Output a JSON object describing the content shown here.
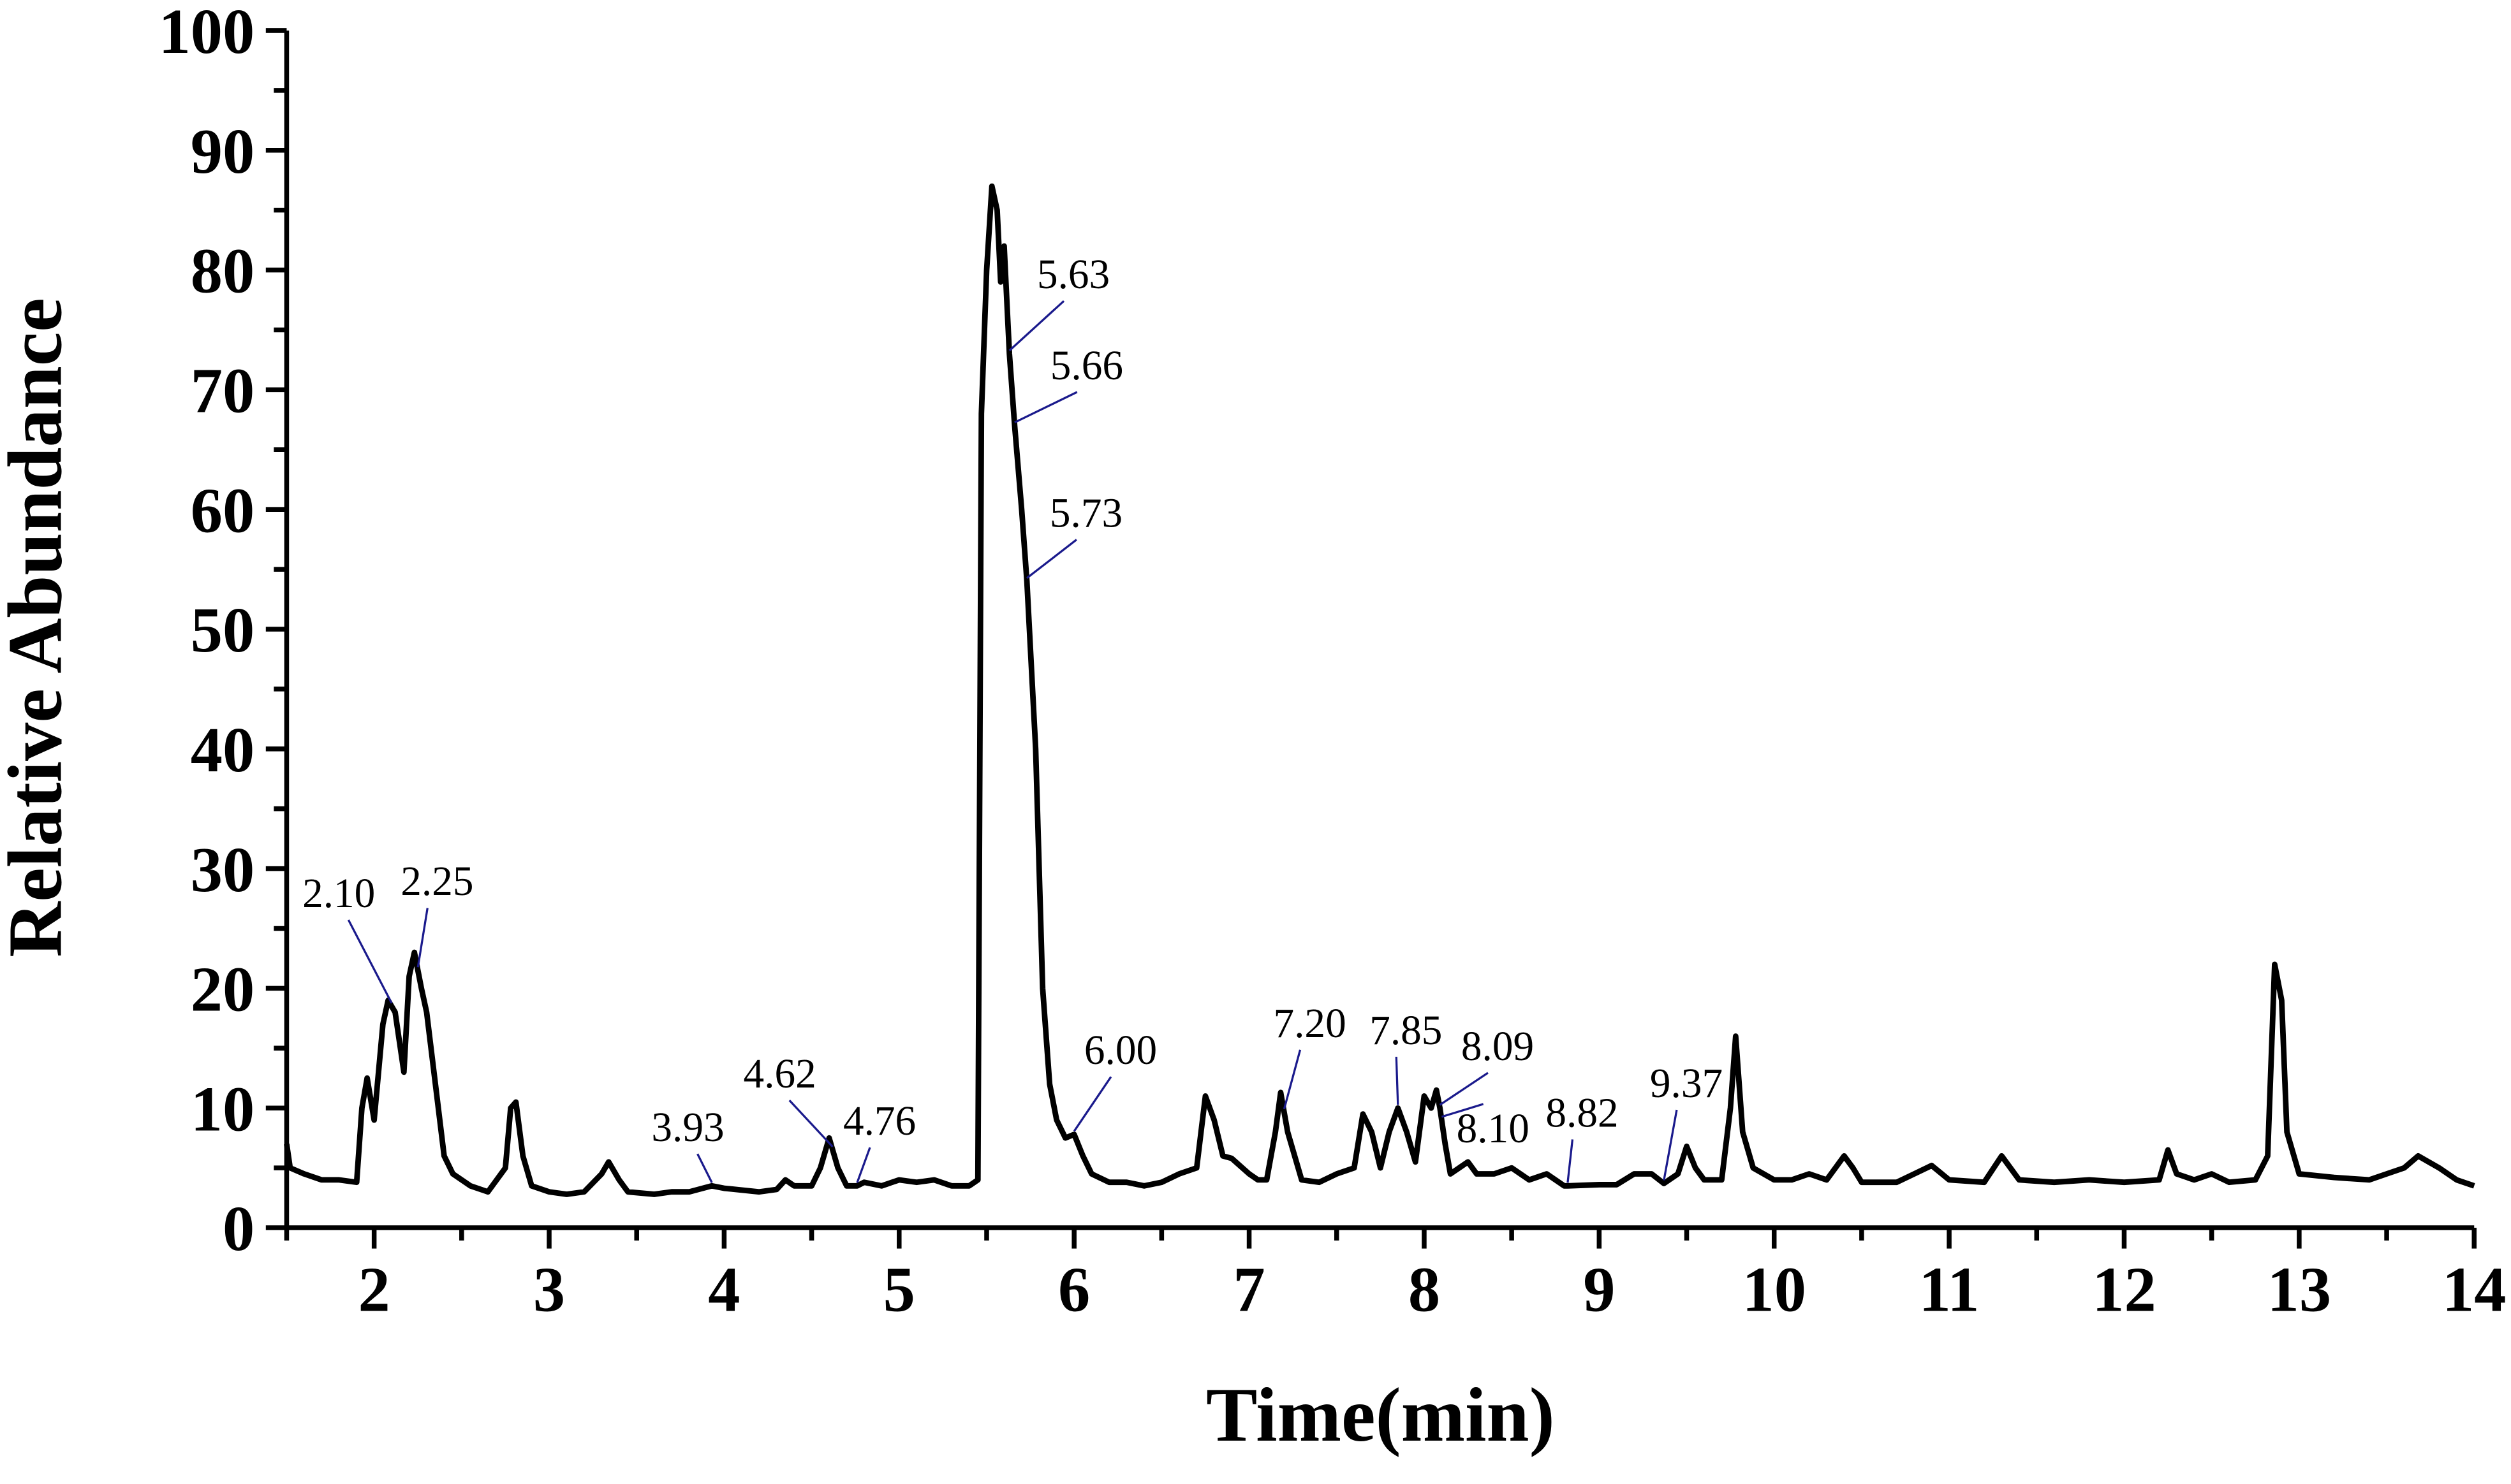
{
  "chart_data": {
    "type": "line",
    "x_label": "Time(min)",
    "y_label": "Relative Abundance",
    "color": "#000000",
    "annotation_color": "#1a1a8c",
    "xlim": [
      1.5,
      14
    ],
    "ylim": [
      0,
      100
    ],
    "xticks": [
      2,
      3,
      4,
      5,
      6,
      7,
      8,
      9,
      10,
      11,
      12,
      13,
      14
    ],
    "xminorticks": [
      1.5,
      2.5,
      3.5,
      4.5,
      5.5,
      6.5,
      7.5,
      8.5,
      9.5,
      10.5,
      11.5,
      12.5,
      13.5
    ],
    "yticks": [
      0,
      10,
      20,
      30,
      40,
      50,
      60,
      70,
      80,
      90,
      100
    ],
    "yminorticks": [
      5,
      15,
      25,
      35,
      45,
      55,
      65,
      75,
      85,
      95
    ],
    "x": [
      1.5,
      1.52,
      1.6,
      1.7,
      1.8,
      1.9,
      1.93,
      1.96,
      2.0,
      2.05,
      2.08,
      2.12,
      2.17,
      2.2,
      2.23,
      2.27,
      2.3,
      2.35,
      2.4,
      2.45,
      2.55,
      2.65,
      2.7,
      2.75,
      2.78,
      2.81,
      2.85,
      2.9,
      3.0,
      3.1,
      3.2,
      3.3,
      3.34,
      3.4,
      3.45,
      3.6,
      3.7,
      3.8,
      3.93,
      4.0,
      4.2,
      4.3,
      4.35,
      4.4,
      4.5,
      4.55,
      4.6,
      4.65,
      4.7,
      4.76,
      4.8,
      4.9,
      5.0,
      5.1,
      5.2,
      5.3,
      5.4,
      5.45,
      5.47,
      5.5,
      5.53,
      5.56,
      5.58,
      5.6,
      5.63,
      5.66,
      5.7,
      5.73,
      5.78,
      5.82,
      5.86,
      5.9,
      5.95,
      6.0,
      6.05,
      6.1,
      6.2,
      6.3,
      6.4,
      6.5,
      6.6,
      6.7,
      6.75,
      6.8,
      6.85,
      6.9,
      7.0,
      7.05,
      7.1,
      7.15,
      7.18,
      7.22,
      7.3,
      7.4,
      7.5,
      7.6,
      7.65,
      7.7,
      7.75,
      7.8,
      7.85,
      7.9,
      7.95,
      8.0,
      8.04,
      8.07,
      8.09,
      8.12,
      8.15,
      8.2,
      8.25,
      8.3,
      8.4,
      8.5,
      8.6,
      8.7,
      8.8,
      8.82,
      9.0,
      9.1,
      9.2,
      9.3,
      9.37,
      9.45,
      9.5,
      9.55,
      9.6,
      9.7,
      9.75,
      9.78,
      9.82,
      9.88,
      10.0,
      10.1,
      10.2,
      10.3,
      10.4,
      10.45,
      10.5,
      10.7,
      10.8,
      10.9,
      11.0,
      11.2,
      11.3,
      11.35,
      11.4,
      11.6,
      11.8,
      12.0,
      12.2,
      12.25,
      12.3,
      12.4,
      12.5,
      12.6,
      12.75,
      12.82,
      12.86,
      12.9,
      12.93,
      13.0,
      13.2,
      13.4,
      13.5,
      13.6,
      13.68,
      13.8,
      13.9,
      14.0
    ],
    "values": [
      7,
      5,
      4.5,
      4,
      4,
      3.8,
      10,
      12.5,
      9,
      17,
      19,
      18,
      13,
      21,
      23,
      20,
      18,
      12,
      6,
      4.5,
      3.5,
      3,
      4,
      5,
      10,
      10.5,
      6,
      3.5,
      3,
      2.8,
      3,
      4.5,
      5.5,
      4,
      3,
      2.8,
      3,
      3,
      3.5,
      3.3,
      3,
      3.2,
      4,
      3.5,
      3.5,
      5,
      7.5,
      5,
      3.5,
      3.5,
      3.8,
      3.5,
      4,
      3.8,
      4,
      3.5,
      3.5,
      4,
      68,
      80,
      87,
      85,
      79,
      82,
      73,
      67,
      60,
      54,
      40,
      20,
      12,
      9,
      7.5,
      7.8,
      6,
      4.5,
      3.8,
      3.8,
      3.5,
      3.8,
      4.5,
      5,
      11,
      9,
      6,
      5.8,
      4.5,
      4,
      4,
      8,
      11.3,
      8,
      4,
      3.8,
      4.5,
      5,
      9.5,
      8,
      5,
      8,
      10,
      8,
      5.5,
      11,
      10,
      11.5,
      10,
      7,
      4.5,
      5,
      5.5,
      4.5,
      4.5,
      5,
      4,
      4.5,
      3.5,
      3.5,
      3.6,
      3.6,
      4.5,
      4.5,
      3.7,
      4.5,
      6.8,
      5,
      4,
      4,
      10,
      16,
      8,
      5,
      4,
      4,
      4.5,
      4,
      6,
      5,
      3.8,
      3.8,
      4.5,
      5.2,
      4,
      3.8,
      6,
      5,
      4,
      3.8,
      4,
      3.8,
      4,
      6.5,
      4.5,
      4,
      4.5,
      3.8,
      4,
      6,
      22,
      19,
      8,
      4.5,
      4.2,
      4,
      4.5,
      5,
      6,
      5,
      4,
      3.5
    ],
    "annotations": [
      {
        "x": 2.1,
        "text": "2.10"
      },
      {
        "x": 2.25,
        "text": "2.25"
      },
      {
        "x": 3.93,
        "text": "3.93"
      },
      {
        "x": 4.62,
        "text": "4.62"
      },
      {
        "x": 4.76,
        "text": "4.76"
      },
      {
        "x": 5.63,
        "text": "5.63"
      },
      {
        "x": 5.66,
        "text": "5.66"
      },
      {
        "x": 5.73,
        "text": "5.73"
      },
      {
        "x": 6.0,
        "text": "6.00"
      },
      {
        "x": 7.2,
        "text": "7.20"
      },
      {
        "x": 7.85,
        "text": "7.85"
      },
      {
        "x": 8.09,
        "text": "8.09"
      },
      {
        "x": 8.1,
        "text": "8.10"
      },
      {
        "x": 8.82,
        "text": "8.82"
      },
      {
        "x": 9.37,
        "text": "9.37"
      }
    ]
  }
}
